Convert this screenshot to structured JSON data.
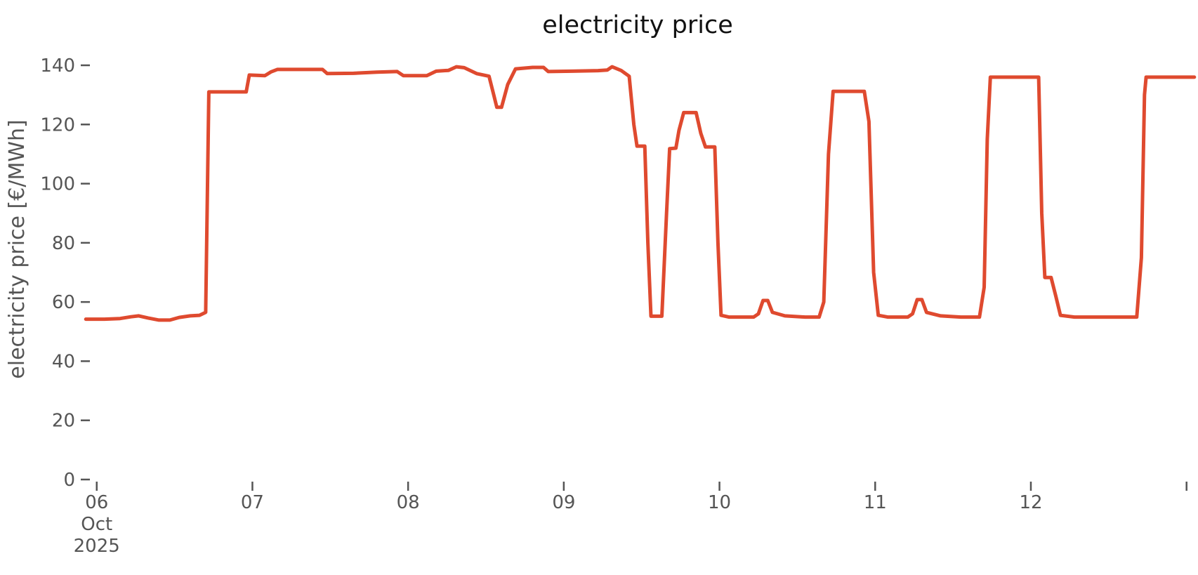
{
  "chart_data": {
    "type": "line",
    "title": "electricity price",
    "xlabel": "",
    "ylabel": "electricity price [€/MWh]",
    "line_color": "#df4a2f",
    "tick_color": "#555555",
    "title_color": "#111111",
    "grid": false,
    "legend": null,
    "ylim": [
      0,
      140
    ],
    "xlim_days": [
      5.92,
      13.06
    ],
    "y_ticks": [
      0,
      20,
      40,
      60,
      80,
      100,
      120,
      140
    ],
    "x_ticks": [
      {
        "value": 6,
        "label": "06",
        "sublabels": [
          "Oct",
          "2025"
        ]
      },
      {
        "value": 7,
        "label": "07",
        "sublabels": []
      },
      {
        "value": 8,
        "label": "08",
        "sublabels": []
      },
      {
        "value": 9,
        "label": "09",
        "sublabels": []
      },
      {
        "value": 10,
        "label": "10",
        "sublabels": []
      },
      {
        "value": 11,
        "label": "11",
        "sublabels": []
      },
      {
        "value": 12,
        "label": "12",
        "sublabels": []
      },
      {
        "value": 13,
        "label": "",
        "sublabels": []
      }
    ],
    "x_unit": "day of October 2025 (fractional = hour of day)",
    "y_unit": "EUR/MWh",
    "series": [
      {
        "name": "electricity price",
        "x": [
          5.93,
          6.05,
          6.15,
          6.22,
          6.27,
          6.33,
          6.4,
          6.47,
          6.53,
          6.6,
          6.66,
          6.7,
          6.72,
          6.85,
          6.96,
          6.98,
          7.08,
          7.12,
          7.16,
          7.35,
          7.45,
          7.48,
          7.65,
          7.8,
          7.93,
          7.97,
          8.12,
          8.18,
          8.26,
          8.31,
          8.36,
          8.44,
          8.52,
          8.55,
          8.57,
          8.6,
          8.64,
          8.69,
          8.8,
          8.87,
          8.9,
          9.05,
          9.22,
          9.28,
          9.31,
          9.37,
          9.42,
          9.45,
          9.47,
          9.52,
          9.54,
          9.56,
          9.63,
          9.66,
          9.68,
          9.72,
          9.74,
          9.77,
          9.85,
          9.88,
          9.91,
          9.97,
          9.99,
          10.01,
          10.06,
          10.22,
          10.25,
          10.28,
          10.31,
          10.34,
          10.42,
          10.55,
          10.64,
          10.67,
          10.7,
          10.73,
          10.88,
          10.93,
          10.96,
          10.99,
          11.02,
          11.08,
          11.21,
          11.24,
          11.27,
          11.3,
          11.33,
          11.42,
          11.55,
          11.67,
          11.7,
          11.72,
          11.74,
          11.9,
          12.05,
          12.07,
          12.09,
          12.13,
          12.16,
          12.19,
          12.28,
          12.45,
          12.6,
          12.68,
          12.71,
          12.73,
          12.74,
          12.9,
          13.05
        ],
        "y": [
          54.2,
          54.2,
          54.4,
          55.0,
          55.3,
          54.6,
          53.9,
          53.9,
          54.8,
          55.3,
          55.5,
          56.5,
          131.0,
          131.0,
          131.0,
          136.7,
          136.5,
          137.8,
          138.6,
          138.6,
          138.6,
          137.2,
          137.3,
          137.7,
          137.9,
          136.5,
          136.5,
          138.0,
          138.3,
          139.5,
          139.2,
          137.2,
          136.3,
          130.0,
          125.8,
          125.8,
          133.5,
          138.8,
          139.3,
          139.3,
          137.9,
          138.0,
          138.2,
          138.4,
          139.5,
          138.2,
          136.3,
          120.0,
          112.7,
          112.7,
          80.0,
          55.2,
          55.2,
          90.0,
          111.8,
          112.0,
          118.0,
          124.0,
          124.0,
          117.0,
          112.4,
          112.4,
          80.0,
          55.5,
          54.9,
          54.9,
          56.0,
          60.5,
          60.5,
          56.5,
          55.3,
          54.9,
          54.9,
          60.0,
          110.0,
          131.2,
          131.2,
          131.2,
          121.0,
          70.0,
          55.5,
          54.9,
          54.9,
          56.0,
          60.8,
          60.8,
          56.5,
          55.3,
          54.9,
          54.9,
          65.0,
          115.0,
          136.0,
          136.0,
          136.0,
          90.0,
          68.3,
          68.3,
          62.0,
          55.5,
          54.9,
          54.9,
          54.9,
          54.9,
          75.0,
          130.0,
          136.0,
          136.0,
          136.0
        ]
      }
    ]
  }
}
